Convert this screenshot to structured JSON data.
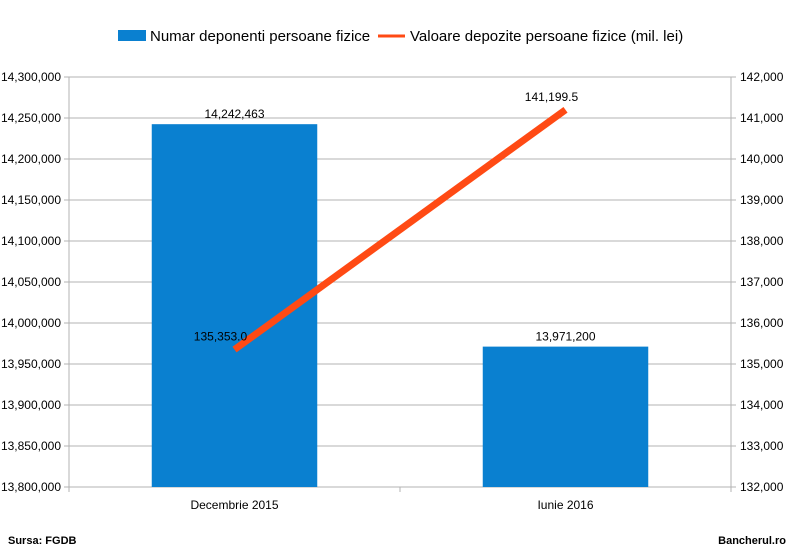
{
  "chart_data": {
    "type": "bar",
    "categories": [
      "Decembrie 2015",
      "Iunie 2016"
    ],
    "series": [
      {
        "name": "Numar deponenti persoane fizice",
        "type": "bar",
        "axis": "left",
        "color": "#0a80d0",
        "values": [
          14242463,
          13971200
        ],
        "labels": [
          "14,242,463",
          "13,971,200"
        ]
      },
      {
        "name": "Valoare depozite persoane fizice (mil. lei)",
        "type": "line",
        "axis": "right",
        "color": "#ff4a14",
        "values": [
          135353.0,
          141199.5
        ],
        "labels": [
          "135,353.0",
          "141,199.5"
        ]
      }
    ],
    "y_left": {
      "range": [
        13800000,
        14300000
      ],
      "ticks": [
        "13,800,000",
        "13,850,000",
        "13,900,000",
        "13,950,000",
        "14,000,000",
        "14,050,000",
        "14,100,000",
        "14,150,000",
        "14,200,000",
        "14,250,000",
        "14,300,000"
      ]
    },
    "y_right": {
      "range": [
        132000,
        142000
      ],
      "ticks": [
        "132,000",
        "133,000",
        "134,000",
        "135,000",
        "136,000",
        "137,000",
        "138,000",
        "139,000",
        "140,000",
        "141,000",
        "142,000"
      ]
    },
    "grid": true,
    "legend_position": "top"
  },
  "footer": {
    "source": "Sursa: FGDB",
    "site": "Bancherul.ro"
  }
}
